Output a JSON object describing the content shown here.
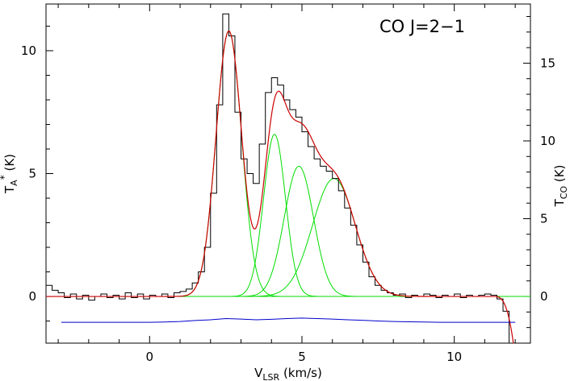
{
  "chart_data": {
    "type": "line",
    "title": "CO J=2−1",
    "xlabel_main": "V",
    "xlabel_sub": "LSR",
    "xlabel_unit": " (km/s)",
    "ylabel_left_main": "T",
    "ylabel_left_sub": "A",
    "ylabel_left_sup": "*",
    "ylabel_left_unit": " (K)",
    "ylabel_right_main": "T",
    "ylabel_right_sub": "CO",
    "ylabel_right_unit": " (K)",
    "xlim": [
      -3.4,
      12.5
    ],
    "ylim": [
      -1.9,
      11.9
    ],
    "right_scale_factor": 1.58,
    "x_ticks": [
      0,
      5,
      10
    ],
    "x_tick_labels": [
      "0",
      "5",
      "10"
    ],
    "y_ticks_left": [
      0,
      5,
      10
    ],
    "y_tick_labels_left": [
      "0",
      "5",
      "10"
    ],
    "y_ticks_right": [
      0,
      5,
      10,
      15
    ],
    "y_tick_labels_right": [
      "0",
      "5",
      "10",
      "15"
    ],
    "grid": false,
    "colors": {
      "observed": "#000000",
      "total_fit": "#cc0000",
      "components": "#00dd00",
      "residual": "#0000cc"
    },
    "components": [
      {
        "center": 2.6,
        "amplitude": 10.8,
        "sigma": 0.42
      },
      {
        "center": 4.1,
        "amplitude": 6.6,
        "sigma": 0.36
      },
      {
        "center": 4.9,
        "amplitude": 5.3,
        "sigma": 0.48
      },
      {
        "center": 6.05,
        "amplitude": 4.8,
        "sigma": 0.7
      }
    ],
    "series": [
      {
        "type": "step",
        "x": [
          -3.4,
          -3.2,
          -3.0,
          -2.8,
          -2.6,
          -2.4,
          -2.2,
          -2.0,
          -1.8,
          -1.6,
          -1.4,
          -1.2,
          -1.0,
          -0.8,
          -0.6,
          -0.4,
          -0.2,
          0.0,
          0.2,
          0.4,
          0.6,
          0.8,
          1.0,
          1.2,
          1.4,
          1.6,
          1.8,
          2.0,
          2.2,
          2.4,
          2.6,
          2.8,
          3.0,
          3.2,
          3.4,
          3.6,
          3.8,
          4.0,
          4.2,
          4.4,
          4.6,
          4.8,
          5.0,
          5.2,
          5.4,
          5.6,
          5.8,
          6.0,
          6.2,
          6.4,
          6.6,
          6.8,
          7.0,
          7.2,
          7.4,
          7.6,
          7.8,
          8.0,
          8.2,
          8.4,
          8.6,
          8.8,
          9.0,
          9.2,
          9.4,
          9.6,
          9.8,
          10.0,
          10.2,
          10.4,
          10.6,
          10.8,
          11.0,
          11.2,
          11.4,
          11.6,
          11.8
        ],
        "y": [
          0.45,
          0.25,
          0.15,
          -0.05,
          0.1,
          -0.1,
          0.05,
          -0.15,
          0.0,
          0.1,
          -0.05,
          0.05,
          -0.1,
          0.15,
          -0.05,
          0.1,
          -0.1,
          0.05,
          0.0,
          0.1,
          -0.05,
          0.15,
          0.2,
          0.3,
          0.55,
          1.0,
          2.0,
          4.2,
          7.8,
          11.5,
          10.6,
          7.5,
          5.6,
          5.0,
          4.6,
          6.2,
          8.3,
          8.9,
          8.6,
          8.0,
          7.6,
          7.3,
          6.7,
          6.1,
          5.6,
          5.3,
          5.1,
          4.8,
          4.3,
          3.6,
          2.9,
          2.1,
          1.4,
          0.8,
          0.45,
          0.25,
          0.15,
          0.05,
          0.1,
          -0.05,
          0.05,
          0.0,
          0.1,
          0.05,
          -0.05,
          0.05,
          0.0,
          0.1,
          -0.05,
          0.05,
          0.0,
          0.05,
          0.1,
          0.05,
          -0.1,
          -0.6,
          -1.9
        ]
      },
      {
        "type": "residual",
        "x": [
          -2.9,
          0.0,
          0.5,
          1.0,
          1.5,
          2.0,
          2.5,
          3.0,
          3.5,
          4.0,
          4.5,
          5.0,
          5.5,
          6.0,
          6.5,
          7.0,
          7.5,
          8.0,
          8.5,
          9.0,
          9.5,
          10.0,
          10.5,
          11.0,
          11.5,
          12.0
        ],
        "y": [
          -1.05,
          -1.05,
          -1.04,
          -1.02,
          -0.98,
          -0.95,
          -0.9,
          -0.92,
          -0.95,
          -0.93,
          -0.9,
          -0.88,
          -0.9,
          -0.92,
          -0.95,
          -0.97,
          -1.0,
          -1.02,
          -1.03,
          -1.04,
          -1.05,
          -1.05,
          -1.05,
          -1.05,
          -1.05,
          -1.05
        ]
      }
    ]
  }
}
